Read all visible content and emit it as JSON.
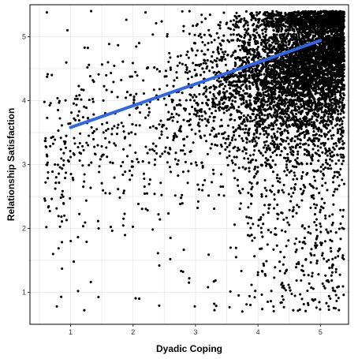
{
  "chart_data": {
    "type": "scatter",
    "title": "",
    "xlabel": "Dyadic Coping",
    "ylabel": "Relationship Satisfaction",
    "xlim": [
      0.35,
      5.45
    ],
    "ylim": [
      0.5,
      5.5
    ],
    "x_ticks": [
      1,
      2,
      3,
      4,
      5
    ],
    "y_ticks": [
      1,
      2,
      3,
      4,
      5
    ],
    "x_tick_labels": [
      "1",
      "2",
      "3",
      "4",
      "5"
    ],
    "y_tick_labels": [
      "1",
      "2",
      "3",
      "4",
      "5"
    ],
    "grid": true,
    "legend": "none",
    "point_color": "#000000",
    "n_points_approx": 6500,
    "series": [
      {
        "marker": "point",
        "points": [
          [
            0.62,
            5.38
          ],
          [
            0.78,
            0.78
          ],
          [
            0.85,
            0.93
          ],
          [
            1.22,
            0.72
          ],
          [
            1.12,
            1.02
          ],
          [
            2.1,
            0.9
          ],
          [
            2.9,
            1.22
          ],
          [
            3.3,
            0.82
          ],
          [
            3.75,
            0.7
          ],
          [
            4.8,
            0.83
          ],
          [
            5.1,
            1.18
          ],
          [
            4.95,
            1.88
          ],
          [
            5.3,
            2.67
          ],
          [
            4.65,
            1.47
          ],
          [
            3.2,
            1.08
          ],
          [
            2.42,
            1.42
          ],
          [
            1.05,
            1.48
          ],
          [
            0.72,
            1.6
          ],
          [
            0.6,
            2.72
          ],
          [
            0.7,
            4.4
          ],
          [
            0.75,
            3.0
          ],
          [
            0.9,
            2.2
          ],
          [
            1.45,
            2.0
          ],
          [
            2.6,
            1.85
          ],
          [
            3.65,
            1.55
          ],
          [
            4.42,
            1.55
          ],
          [
            4.75,
            2.0
          ],
          [
            5.36,
            3.15
          ],
          [
            1.33,
            5.4
          ],
          [
            2.2,
            5.38
          ],
          [
            0.95,
            5.1
          ],
          [
            1.6,
            4.6
          ],
          [
            0.8,
            3.85
          ],
          [
            1.7,
            3.6
          ]
        ]
      }
    ],
    "fit_line": {
      "x": [
        1.0,
        5.0
      ],
      "y": [
        3.58,
        4.94
      ],
      "color": "#3366e6"
    }
  }
}
